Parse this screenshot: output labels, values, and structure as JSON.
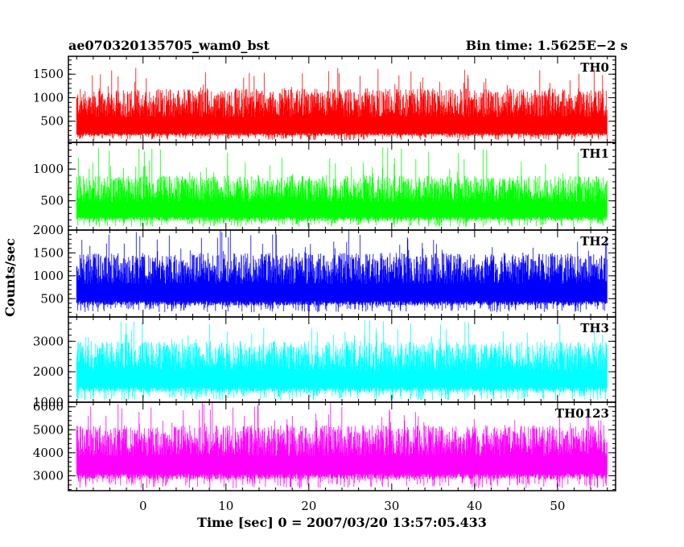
{
  "chart_data": {
    "type": "line",
    "title": "ae070320135705_wam0_bst",
    "subtitle": "Bin time: 1.5625E−2 s",
    "xlabel": "Time [sec] 0 = 2007/03/20 13:57:05.433",
    "ylabel": "Counts/sec",
    "xlim": [
      -9,
      57
    ],
    "xticks": [
      0,
      10,
      20,
      30,
      40,
      50
    ],
    "x_data_range": [
      -8,
      56
    ],
    "bin_time_s": 0.015625,
    "grid": false,
    "panels": [
      {
        "name": "TH0",
        "color": "#ff0000",
        "ylim": [
          50,
          1880
        ],
        "yticks": [
          500,
          1000,
          1500
        ],
        "baseline": 250,
        "typical_high": 1200,
        "occasional_high": 1650,
        "trough_min": 100
      },
      {
        "name": "TH1",
        "color": "#00ff00",
        "ylim": [
          40,
          1420
        ],
        "yticks": [
          500,
          1000
        ],
        "baseline": 250,
        "typical_high": 900,
        "occasional_high": 1350,
        "trough_min": 90
      },
      {
        "name": "TH2",
        "color": "#0000ff",
        "ylim": [
          100,
          2000
        ],
        "yticks": [
          500,
          1000,
          1500,
          2000
        ],
        "baseline": 450,
        "typical_high": 1500,
        "occasional_high": 2000,
        "trough_min": 200
      },
      {
        "name": "TH3",
        "color": "#00ffff",
        "ylim": [
          1000,
          3800
        ],
        "yticks": [
          1000,
          2000,
          3000
        ],
        "baseline": 1500,
        "typical_high": 3000,
        "occasional_high": 3700,
        "trough_min": 1050
      },
      {
        "name": "TH0123",
        "color": "#ff00ff",
        "ylim": [
          2350,
          6200
        ],
        "yticks": [
          3000,
          4000,
          5000,
          6000
        ],
        "baseline": 3100,
        "typical_high": 5200,
        "occasional_high": 6200,
        "trough_min": 2450
      }
    ]
  }
}
